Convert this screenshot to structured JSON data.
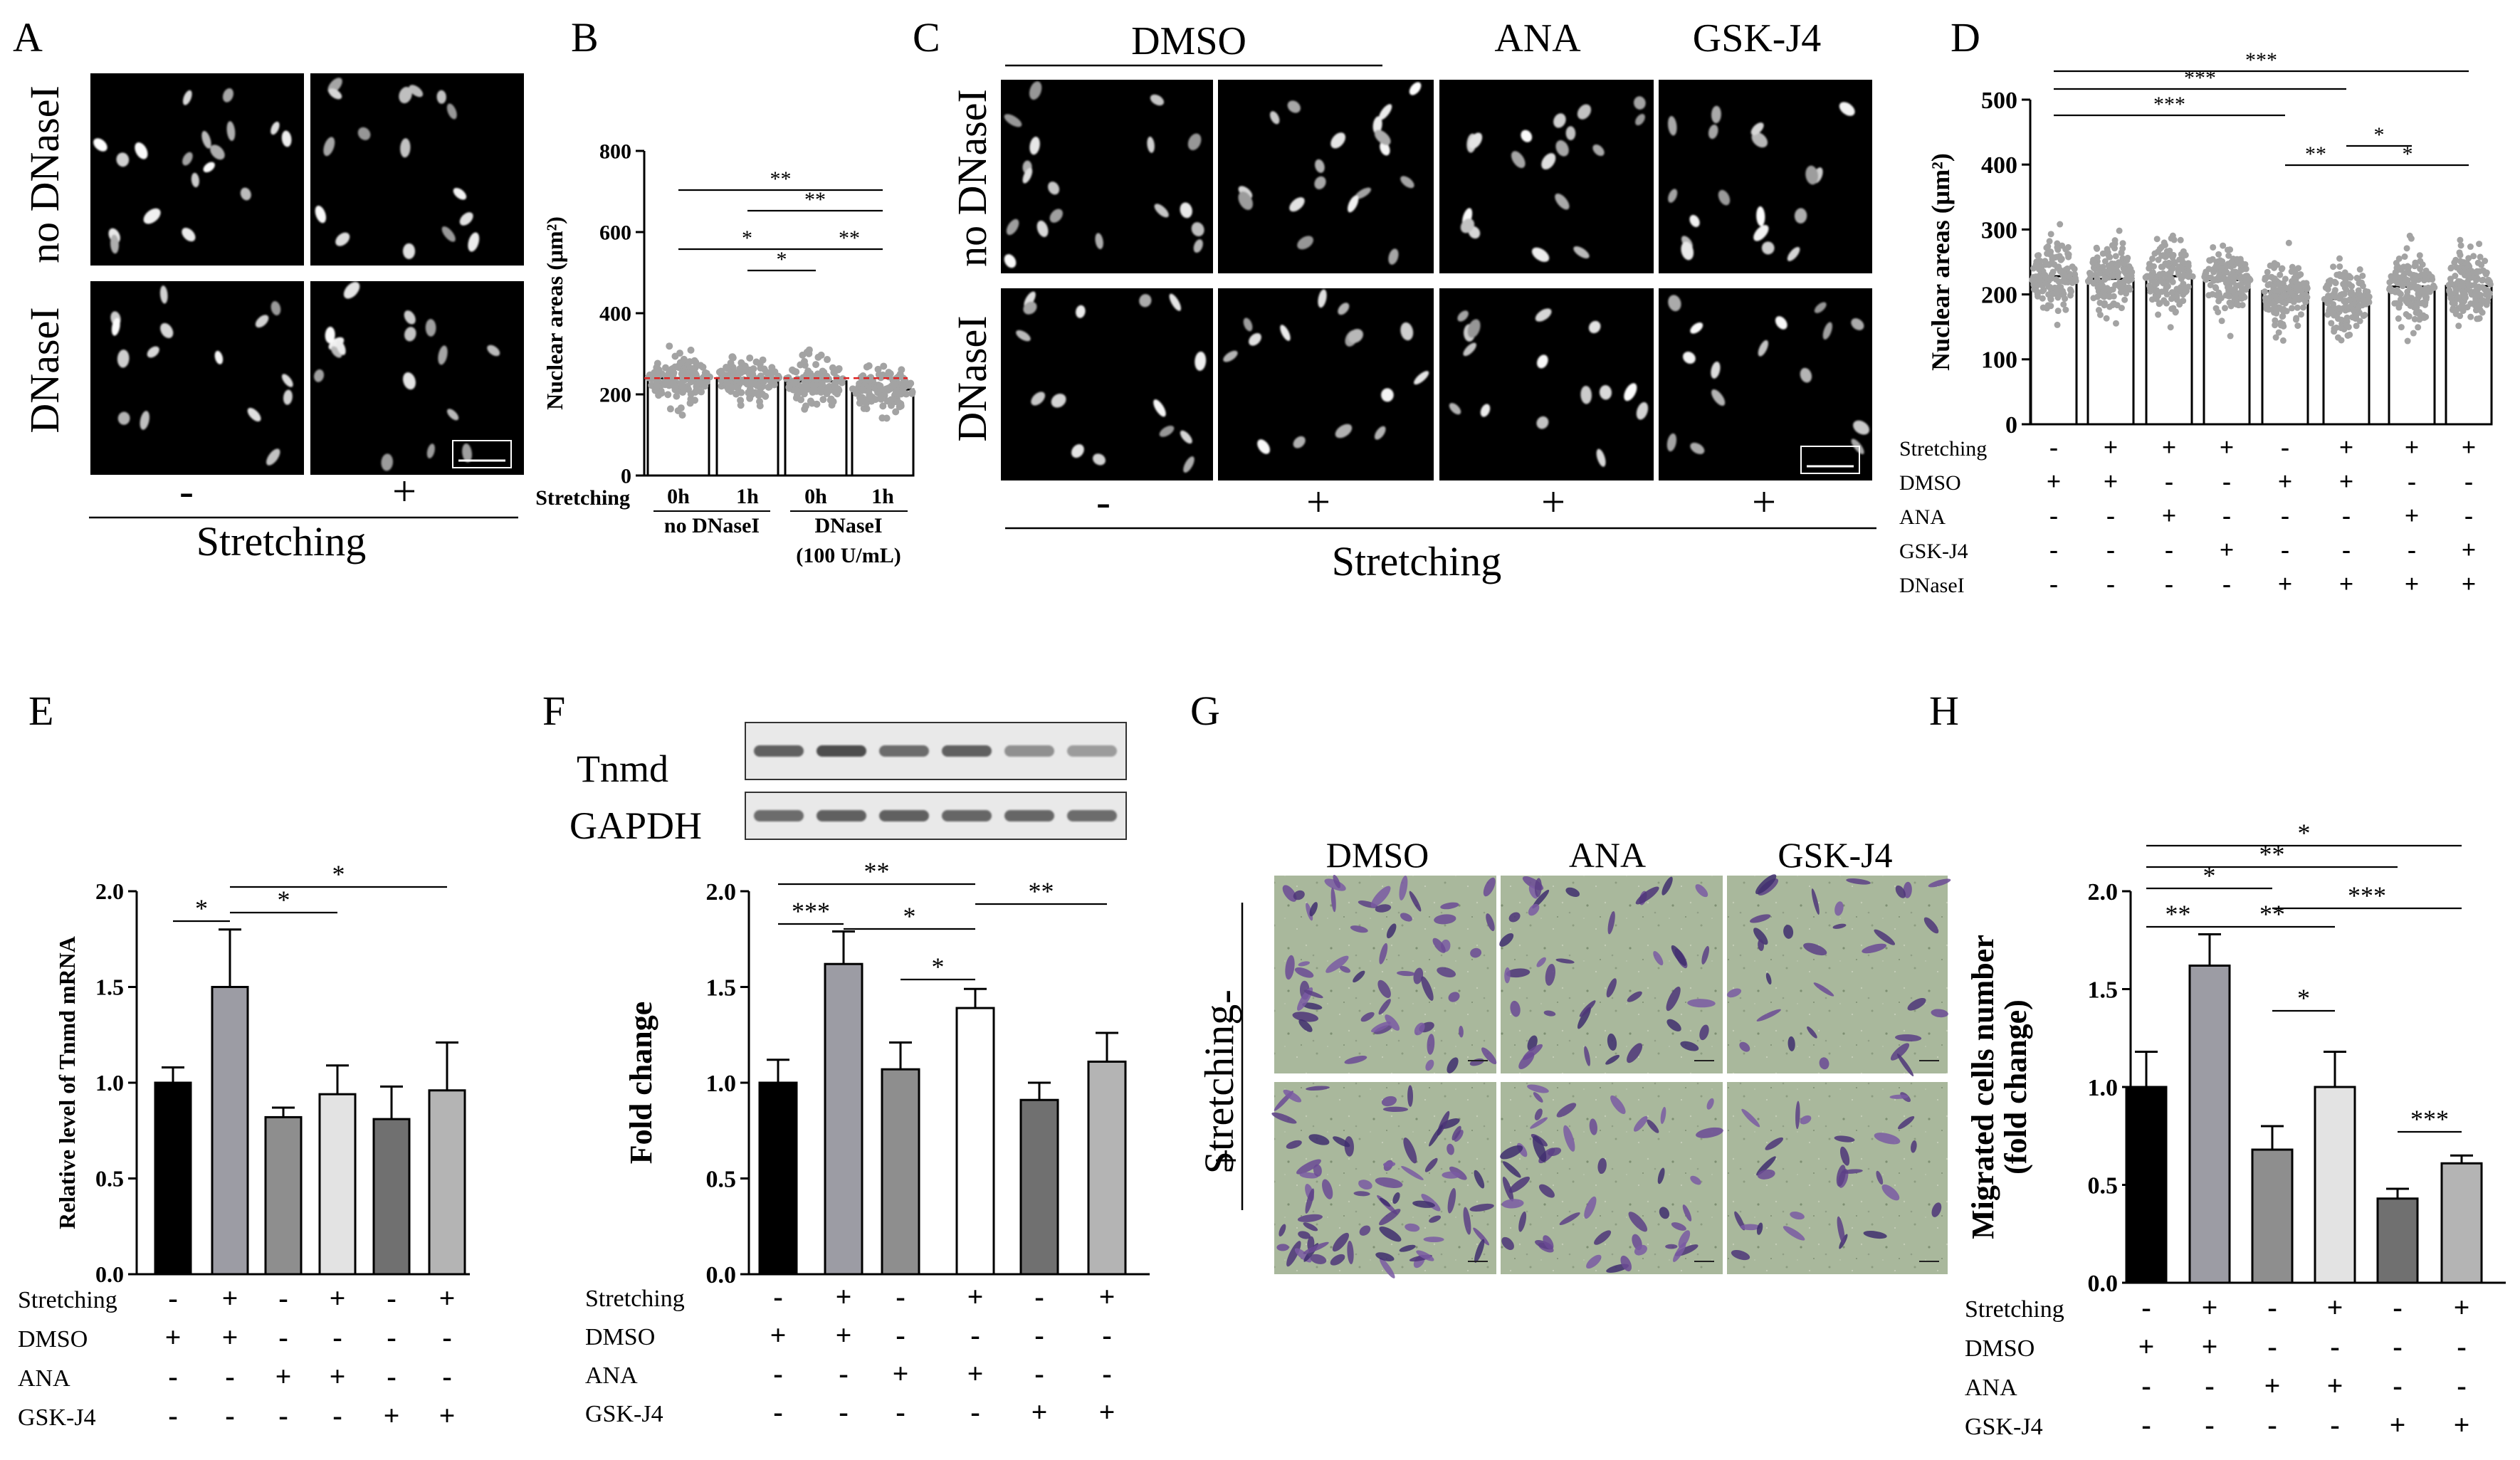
{
  "stretch_signs": {
    "minus": "-",
    "plus": "+"
  },
  "panelA": {
    "letter": "A",
    "row_labels": [
      "no DNaseI",
      "DNaseI"
    ],
    "col_signs": [
      "-",
      "+"
    ],
    "xlabel": "Stretching"
  },
  "panelB": {
    "letter": "B",
    "chart_data": {
      "type": "bar",
      "ylabel": "Nuclear areas (μm²)",
      "ylim": [
        0,
        800
      ],
      "yticks": [
        0,
        200,
        400,
        600,
        800
      ],
      "categories": [
        "0h",
        "1h",
        "0h",
        "1h"
      ],
      "values": [
        240,
        240,
        232,
        212
      ],
      "reference_line": 240,
      "row_label": "Stretching",
      "group_labels": [
        "no DNaseI",
        "DNaseI",
        "(100 U/mL)"
      ],
      "significance": [
        {
          "from": 0,
          "to": 3,
          "label": "**"
        },
        {
          "from": 1,
          "to": 3,
          "label": "**"
        },
        {
          "from": 0,
          "to": 2,
          "label": "*"
        },
        {
          "from": 1,
          "to": 2,
          "label": "*"
        },
        {
          "from": 2,
          "to": 3,
          "label": "**"
        }
      ]
    }
  },
  "panelC": {
    "letter": "C",
    "col_headers": [
      "DMSO",
      "ANA",
      "GSK-J4"
    ],
    "row_labels": [
      "no DNaseI",
      "DNaseI"
    ],
    "col_signs": [
      "-",
      "+",
      "+",
      "+"
    ],
    "xlabel": "Stretching"
  },
  "panelD": {
    "letter": "D",
    "chart_data": {
      "type": "bar",
      "ylabel": "Nuclear areas (μm²)",
      "ylim": [
        0,
        500
      ],
      "yticks": [
        0,
        100,
        200,
        300,
        400,
        500
      ],
      "values": [
        228,
        224,
        228,
        222,
        205,
        193,
        212,
        213
      ],
      "significance": [
        {
          "from": 0,
          "to": 7,
          "label": "***"
        },
        {
          "from": 0,
          "to": 5,
          "label": "***"
        },
        {
          "from": 0,
          "to": 4,
          "label": "***"
        },
        {
          "from": 4,
          "to": 5,
          "label": "**"
        },
        {
          "from": 5,
          "to": 7,
          "label": "*"
        },
        {
          "from": 5,
          "to": 6,
          "label": "*"
        }
      ],
      "condition_rows": [
        {
          "name": "Stretching",
          "signs": [
            "-",
            "+",
            "+",
            "+",
            "-",
            "+",
            "+",
            "+"
          ]
        },
        {
          "name": "DMSO",
          "signs": [
            "+",
            "+",
            "-",
            "-",
            "+",
            "+",
            "-",
            "-"
          ]
        },
        {
          "name": "ANA",
          "signs": [
            "-",
            "-",
            "+",
            "-",
            "-",
            "-",
            "+",
            "-"
          ]
        },
        {
          "name": "GSK-J4",
          "signs": [
            "-",
            "-",
            "-",
            "+",
            "-",
            "-",
            "-",
            "+"
          ]
        },
        {
          "name": "DNaseI",
          "signs": [
            "-",
            "-",
            "-",
            "-",
            "+",
            "+",
            "+",
            "+"
          ]
        }
      ]
    }
  },
  "panelE": {
    "letter": "E",
    "chart_data": {
      "type": "bar",
      "ylabel": "Relative level of Tnmd mRNA",
      "ylim": [
        0,
        2.0
      ],
      "yticks": [
        "0.0",
        "0.5",
        "1.0",
        "1.5",
        "2.0"
      ],
      "values": [
        1.0,
        1.5,
        0.82,
        0.94,
        0.81,
        0.96
      ],
      "errors": [
        0.08,
        0.3,
        0.05,
        0.15,
        0.17,
        0.25
      ],
      "colors": [
        "#000000",
        "#9c9ca4",
        "#8e8e8e",
        "#e3e3e3",
        "#707070",
        "#b4b4b4"
      ],
      "significance": [
        {
          "from": 0,
          "to": 1,
          "label": "*"
        },
        {
          "from": 1,
          "to": 3,
          "label": "*"
        },
        {
          "from": 1,
          "to": 5,
          "label": "*"
        }
      ],
      "condition_rows": [
        {
          "name": "Stretching",
          "signs": [
            "-",
            "+",
            "-",
            "+",
            "-",
            "+"
          ]
        },
        {
          "name": "DMSO",
          "signs": [
            "+",
            "+",
            "-",
            "-",
            "-",
            "-"
          ]
        },
        {
          "name": "ANA",
          "signs": [
            "-",
            "-",
            "+",
            "+",
            "-",
            "-"
          ]
        },
        {
          "name": "GSK-J4",
          "signs": [
            "-",
            "-",
            "-",
            "-",
            "+",
            "+"
          ]
        }
      ]
    }
  },
  "panelF": {
    "letter": "F",
    "blot_labels": [
      "Tnmd",
      "GAPDH"
    ],
    "chart_data": {
      "type": "bar",
      "ylabel": "Fold change",
      "ylim": [
        0,
        2.0
      ],
      "yticks": [
        "0.0",
        "0.5",
        "1.0",
        "1.5",
        "2.0"
      ],
      "values": [
        1.0,
        1.62,
        1.07,
        1.39,
        0.91,
        1.11
      ],
      "errors": [
        0.12,
        0.17,
        0.14,
        0.1,
        0.09,
        0.15
      ],
      "colors": [
        "#000000",
        "#9c9ca4",
        "#8e8e8e",
        "#ffffff",
        "#707070",
        "#b4b4b4"
      ],
      "significance": [
        {
          "from": 0,
          "to": 3,
          "label": "**"
        },
        {
          "from": 3,
          "to": 5,
          "label": "**"
        },
        {
          "from": 0,
          "to": 1,
          "label": "***"
        },
        {
          "from": 1,
          "to": 3,
          "label": "*"
        },
        {
          "from": 2,
          "to": 3,
          "label": "*"
        }
      ],
      "condition_rows": [
        {
          "name": "Stretching",
          "signs": [
            "-",
            "+",
            "-",
            "+",
            "-",
            "+"
          ]
        },
        {
          "name": "DMSO",
          "signs": [
            "+",
            "+",
            "-",
            "-",
            "-",
            "-"
          ]
        },
        {
          "name": "ANA",
          "signs": [
            "-",
            "-",
            "+",
            "+",
            "-",
            "-"
          ]
        },
        {
          "name": "GSK-J4",
          "signs": [
            "-",
            "-",
            "-",
            "-",
            "+",
            "+"
          ]
        }
      ]
    }
  },
  "panelG": {
    "letter": "G",
    "col_headers": [
      "DMSO",
      "ANA",
      "GSK-J4"
    ],
    "row_label": "Stretching",
    "row_signs": [
      "-",
      "+"
    ]
  },
  "panelH": {
    "letter": "H",
    "chart_data": {
      "type": "bar",
      "ylabel": "Migrated cells number (fold change)",
      "ylim": [
        0,
        2.0
      ],
      "yticks": [
        "0.0",
        "0.5",
        "1.0",
        "1.5",
        "2.0"
      ],
      "values": [
        1.0,
        1.62,
        0.68,
        1.0,
        0.43,
        0.61
      ],
      "errors": [
        0.18,
        0.16,
        0.12,
        0.18,
        0.05,
        0.04
      ],
      "colors": [
        "#000000",
        "#9c9ca4",
        "#8e8e8e",
        "#e3e3e3",
        "#707070",
        "#b4b4b4"
      ],
      "significance": [
        {
          "from": 0,
          "to": 5,
          "label": "*"
        },
        {
          "from": 0,
          "to": 4,
          "label": "**"
        },
        {
          "from": 0,
          "to": 2,
          "label": "*"
        },
        {
          "from": 2,
          "to": 5,
          "label": "***"
        },
        {
          "from": 0,
          "to": 1,
          "label": "**"
        },
        {
          "from": 1,
          "to": 3,
          "label": "**"
        },
        {
          "from": 2,
          "to": 3,
          "label": "*"
        },
        {
          "from": 4,
          "to": 5,
          "label": "***"
        }
      ],
      "condition_rows": [
        {
          "name": "Stretching",
          "signs": [
            "-",
            "+",
            "-",
            "+",
            "-",
            "+"
          ]
        },
        {
          "name": "DMSO",
          "signs": [
            "+",
            "+",
            "-",
            "-",
            "-",
            "-"
          ]
        },
        {
          "name": "ANA",
          "signs": [
            "-",
            "-",
            "+",
            "+",
            "-",
            "-"
          ]
        },
        {
          "name": "GSK-J4",
          "signs": [
            "-",
            "-",
            "-",
            "-",
            "+",
            "+"
          ]
        }
      ]
    }
  }
}
